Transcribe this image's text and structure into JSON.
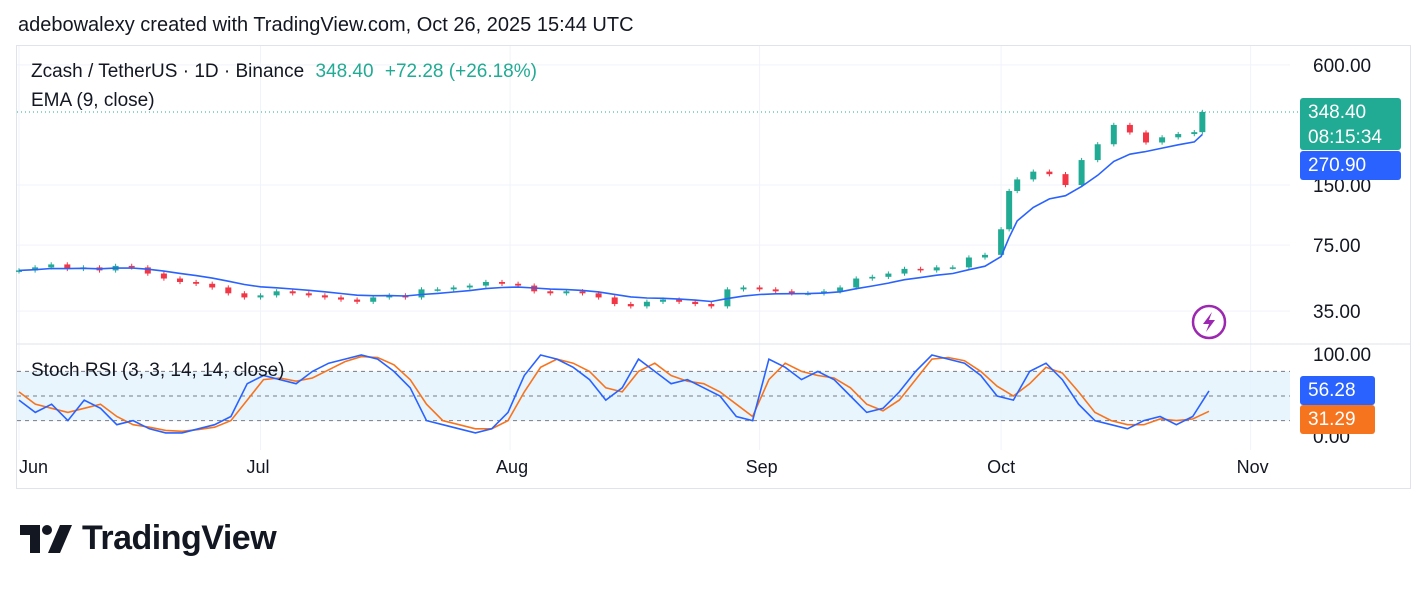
{
  "header": {
    "attribution": "adebowalexy created with TradingView.com, Oct 26, 2025 15:44 UTC"
  },
  "legend": {
    "symbol": "Zcash / TetherUS · 1D · Binance",
    "price": "348.40",
    "change": "+72.28 (+26.18%)",
    "ema": "EMA (9, close)",
    "stoch": "Stoch RSI (3, 3, 14, 14, close)"
  },
  "price_tags": {
    "last": "348.40",
    "countdown": "08:15:34",
    "ema": "270.90",
    "k": "56.28",
    "d": "31.29"
  },
  "brand": {
    "name": "TradingView"
  },
  "colors": {
    "up": "#22ab94",
    "down": "#f23645",
    "ema": "#2962ff",
    "k": "#2962ff",
    "d": "#f7741f",
    "band": "#e3f2fd",
    "logo": "#131722"
  },
  "icons": {
    "replay": "lightning-icon"
  },
  "chart_data": [
    {
      "type": "candlestick",
      "title": "Zcash / TetherUS · 1D · Binance",
      "y_scale": "log",
      "y_ticks": [
        "600.00",
        "150.00",
        "75.00",
        "35.00"
      ],
      "x_ticks": [
        "Jun",
        "Jul",
        "Aug",
        "Sep",
        "Oct",
        "Nov"
      ],
      "last_price": 348.4,
      "change": 72.28,
      "change_pct": 26.18,
      "close_series": [
        {
          "x": "2025-06-01",
          "y": 56
        },
        {
          "x": "2025-06-03",
          "y": 58
        },
        {
          "x": "2025-06-05",
          "y": 60
        },
        {
          "x": "2025-06-07",
          "y": 57
        },
        {
          "x": "2025-06-09",
          "y": 58
        },
        {
          "x": "2025-06-11",
          "y": 56
        },
        {
          "x": "2025-06-13",
          "y": 59
        },
        {
          "x": "2025-06-15",
          "y": 58
        },
        {
          "x": "2025-06-17",
          "y": 54
        },
        {
          "x": "2025-06-19",
          "y": 51
        },
        {
          "x": "2025-06-21",
          "y": 49
        },
        {
          "x": "2025-06-23",
          "y": 48
        },
        {
          "x": "2025-06-25",
          "y": 46
        },
        {
          "x": "2025-06-27",
          "y": 43
        },
        {
          "x": "2025-06-29",
          "y": 41
        },
        {
          "x": "2025-07-01",
          "y": 42
        },
        {
          "x": "2025-07-03",
          "y": 44
        },
        {
          "x": "2025-07-05",
          "y": 43
        },
        {
          "x": "2025-07-07",
          "y": 42
        },
        {
          "x": "2025-07-09",
          "y": 41
        },
        {
          "x": "2025-07-11",
          "y": 40
        },
        {
          "x": "2025-07-13",
          "y": 39
        },
        {
          "x": "2025-07-15",
          "y": 41
        },
        {
          "x": "2025-07-17",
          "y": 42
        },
        {
          "x": "2025-07-19",
          "y": 41
        },
        {
          "x": "2025-07-21",
          "y": 45
        },
        {
          "x": "2025-07-23",
          "y": 45
        },
        {
          "x": "2025-07-25",
          "y": 46
        },
        {
          "x": "2025-07-27",
          "y": 47
        },
        {
          "x": "2025-07-29",
          "y": 49
        },
        {
          "x": "2025-07-31",
          "y": 48
        },
        {
          "x": "2025-08-02",
          "y": 47
        },
        {
          "x": "2025-08-04",
          "y": 44
        },
        {
          "x": "2025-08-06",
          "y": 43
        },
        {
          "x": "2025-08-08",
          "y": 44
        },
        {
          "x": "2025-08-10",
          "y": 43
        },
        {
          "x": "2025-08-12",
          "y": 41
        },
        {
          "x": "2025-08-14",
          "y": 38
        },
        {
          "x": "2025-08-16",
          "y": 37
        },
        {
          "x": "2025-08-18",
          "y": 39
        },
        {
          "x": "2025-08-20",
          "y": 40
        },
        {
          "x": "2025-08-22",
          "y": 39
        },
        {
          "x": "2025-08-24",
          "y": 38
        },
        {
          "x": "2025-08-26",
          "y": 37
        },
        {
          "x": "2025-08-28",
          "y": 45
        },
        {
          "x": "2025-08-30",
          "y": 46
        },
        {
          "x": "2025-09-01",
          "y": 45
        },
        {
          "x": "2025-09-03",
          "y": 44
        },
        {
          "x": "2025-09-05",
          "y": 43
        },
        {
          "x": "2025-09-07",
          "y": 43
        },
        {
          "x": "2025-09-09",
          "y": 44
        },
        {
          "x": "2025-09-11",
          "y": 46
        },
        {
          "x": "2025-09-13",
          "y": 51
        },
        {
          "x": "2025-09-15",
          "y": 52
        },
        {
          "x": "2025-09-17",
          "y": 54
        },
        {
          "x": "2025-09-19",
          "y": 57
        },
        {
          "x": "2025-09-21",
          "y": 56
        },
        {
          "x": "2025-09-23",
          "y": 58
        },
        {
          "x": "2025-09-25",
          "y": 58
        },
        {
          "x": "2025-09-27",
          "y": 65
        },
        {
          "x": "2025-09-29",
          "y": 67
        },
        {
          "x": "2025-10-01",
          "y": 90
        },
        {
          "x": "2025-10-02",
          "y": 140
        },
        {
          "x": "2025-10-03",
          "y": 160
        },
        {
          "x": "2025-10-05",
          "y": 175
        },
        {
          "x": "2025-10-07",
          "y": 170
        },
        {
          "x": "2025-10-09",
          "y": 150
        },
        {
          "x": "2025-10-11",
          "y": 200
        },
        {
          "x": "2025-10-13",
          "y": 240
        },
        {
          "x": "2025-10-15",
          "y": 300
        },
        {
          "x": "2025-10-17",
          "y": 275
        },
        {
          "x": "2025-10-19",
          "y": 245
        },
        {
          "x": "2025-10-21",
          "y": 260
        },
        {
          "x": "2025-10-23",
          "y": 270
        },
        {
          "x": "2025-10-25",
          "y": 276
        },
        {
          "x": "2025-10-26",
          "y": 348.4
        }
      ]
    },
    {
      "type": "line",
      "title": "EMA (9, close)",
      "series": [
        {
          "name": "EMA (9, close)",
          "last": 270.9
        }
      ]
    },
    {
      "type": "line",
      "title": "Stoch RSI (3, 3, 14, 14, close)",
      "y_ticks": [
        "100.00",
        "0.00"
      ],
      "bands": [
        20,
        80
      ],
      "series": [
        {
          "name": "K",
          "last": 56.28,
          "values": [
            45,
            30,
            40,
            20,
            45,
            35,
            15,
            20,
            10,
            5,
            5,
            10,
            15,
            25,
            65,
            75,
            70,
            65,
            80,
            90,
            95,
            100,
            95,
            80,
            60,
            20,
            15,
            10,
            5,
            10,
            30,
            75,
            100,
            95,
            85,
            70,
            45,
            60,
            95,
            80,
            65,
            70,
            60,
            50,
            25,
            20,
            95,
            85,
            70,
            80,
            70,
            50,
            30,
            35,
            55,
            80,
            100,
            95,
            90,
            75,
            50,
            45,
            80,
            90,
            70,
            40,
            20,
            15,
            10,
            20,
            25,
            15,
            25,
            56.28
          ]
        },
        {
          "name": "D",
          "last": 31.29,
          "values": [
            55,
            40,
            35,
            30,
            35,
            40,
            25,
            15,
            12,
            8,
            7,
            9,
            12,
            20,
            45,
            70,
            72,
            68,
            72,
            82,
            92,
            98,
            97,
            88,
            70,
            40,
            20,
            15,
            10,
            10,
            20,
            55,
            85,
            95,
            90,
            80,
            60,
            55,
            80,
            90,
            75,
            68,
            65,
            55,
            40,
            25,
            70,
            90,
            80,
            75,
            72,
            60,
            40,
            32,
            45,
            70,
            95,
            97,
            93,
            80,
            62,
            50,
            65,
            85,
            78,
            55,
            30,
            20,
            15,
            15,
            22,
            20,
            22,
            31.29
          ]
        }
      ]
    }
  ]
}
